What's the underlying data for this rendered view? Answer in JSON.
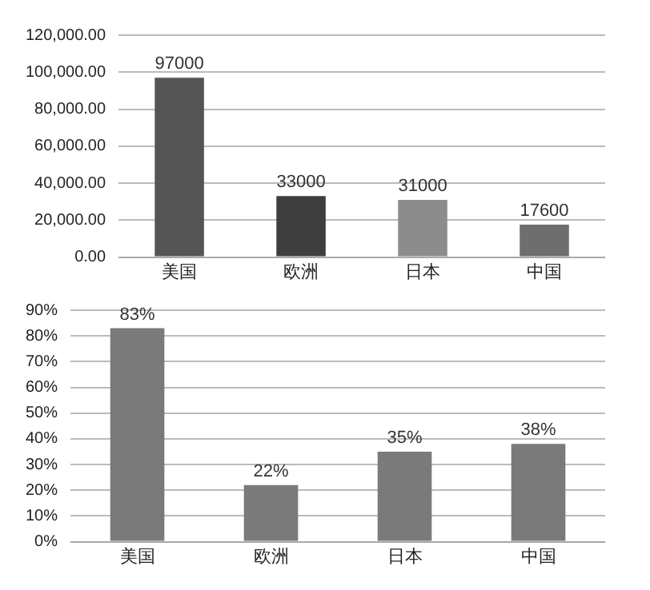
{
  "chart_data": [
    {
      "type": "bar",
      "categories": [
        "美国",
        "欧洲",
        "日本",
        "中国"
      ],
      "values": [
        97000,
        33000,
        31000,
        17600
      ],
      "colors": [
        "#555555",
        "#3e3e3e",
        "#8c8c8c",
        "#6e6e6e"
      ],
      "ylim": [
        0,
        120000
      ],
      "yticks": [
        {
          "value": 0,
          "label": "0.00"
        },
        {
          "value": 20000,
          "label": "20,000.00"
        },
        {
          "value": 40000,
          "label": "40,000.00"
        },
        {
          "value": 60000,
          "label": "60,000.00"
        },
        {
          "value": 80000,
          "label": "80,000.00"
        },
        {
          "value": 100000,
          "label": "100,000.00"
        },
        {
          "value": 120000,
          "label": "120,000.00"
        }
      ],
      "grid": "y",
      "data_labels": true
    },
    {
      "type": "bar",
      "categories": [
        "美国",
        "欧洲",
        "日本",
        "中国"
      ],
      "values": [
        83,
        22,
        35,
        38
      ],
      "colors": [
        "#7a7a7a",
        "#7a7a7a",
        "#7a7a7a",
        "#7a7a7a"
      ],
      "value_labels": [
        "83%",
        "22%",
        "35%",
        "38%"
      ],
      "ylim": [
        0,
        90
      ],
      "yticks": [
        {
          "value": 0,
          "label": "0%"
        },
        {
          "value": 10,
          "label": "10%"
        },
        {
          "value": 20,
          "label": "20%"
        },
        {
          "value": 30,
          "label": "30%"
        },
        {
          "value": 40,
          "label": "40%"
        },
        {
          "value": 50,
          "label": "50%"
        },
        {
          "value": 60,
          "label": "60%"
        },
        {
          "value": 70,
          "label": "70%"
        },
        {
          "value": 80,
          "label": "80%"
        },
        {
          "value": 90,
          "label": "90%"
        }
      ],
      "grid": "y"
    }
  ]
}
